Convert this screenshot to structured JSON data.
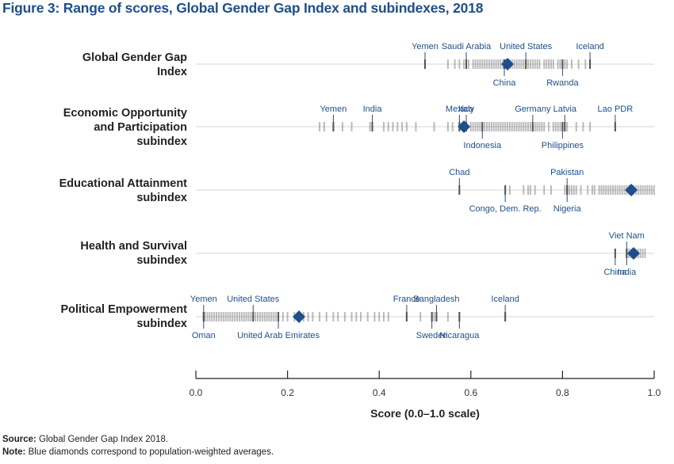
{
  "chart_data": {
    "type": "strip",
    "title": "Figure 3: Range of scores, Global Gender Gap Index and subindexes, 2018",
    "xlabel": "Score (0.0–1.0 scale)",
    "xlim": [
      0.0,
      1.0
    ],
    "xticks": [
      0.0,
      0.2,
      0.4,
      0.6,
      0.8,
      1.0
    ],
    "xtick_labels": [
      "0.0",
      "0.2",
      "0.4",
      "0.6",
      "0.8",
      "1.0"
    ],
    "grid": false,
    "legend": "none",
    "accent_color": "#1f4e8c",
    "rows": [
      {
        "label": "Global Gender Gap\nIndex",
        "weighted_average": 0.68,
        "annotations_above": [
          {
            "country": "Yemen",
            "value": 0.5
          },
          {
            "country": "Saudi Arabia",
            "value": 0.59
          },
          {
            "country": "United States",
            "value": 0.72
          },
          {
            "country": "Iceland",
            "value": 0.86
          }
        ],
        "annotations_below": [
          {
            "country": "China",
            "value": 0.673
          },
          {
            "country": "Rwanda",
            "value": 0.8
          }
        ],
        "scores": [
          0.5,
          0.55,
          0.565,
          0.575,
          0.585,
          0.59,
          0.595,
          0.605,
          0.61,
          0.615,
          0.62,
          0.625,
          0.63,
          0.635,
          0.64,
          0.645,
          0.65,
          0.655,
          0.66,
          0.665,
          0.67,
          0.673,
          0.675,
          0.68,
          0.685,
          0.69,
          0.695,
          0.7,
          0.705,
          0.71,
          0.715,
          0.72,
          0.725,
          0.73,
          0.735,
          0.74,
          0.745,
          0.75,
          0.76,
          0.765,
          0.77,
          0.775,
          0.78,
          0.79,
          0.795,
          0.8,
          0.805,
          0.81,
          0.82,
          0.835,
          0.85,
          0.86
        ]
      },
      {
        "label": "Economic Opportunity\nand Participation\nsubindex",
        "weighted_average": 0.585,
        "annotations_above": [
          {
            "country": "Yemen",
            "value": 0.3
          },
          {
            "country": "India",
            "value": 0.385
          },
          {
            "country": "Mexico",
            "value": 0.575
          },
          {
            "country": "Italy",
            "value": 0.59
          },
          {
            "country": "Germany",
            "value": 0.735
          },
          {
            "country": "Latvia",
            "value": 0.805
          },
          {
            "country": "Lao PDR",
            "value": 0.915
          }
        ],
        "annotations_below": [
          {
            "country": "Indonesia",
            "value": 0.625
          },
          {
            "country": "Philippines",
            "value": 0.8
          }
        ],
        "scores": [
          0.27,
          0.28,
          0.3,
          0.32,
          0.34,
          0.38,
          0.385,
          0.41,
          0.42,
          0.43,
          0.44,
          0.45,
          0.46,
          0.48,
          0.52,
          0.55,
          0.56,
          0.575,
          0.59,
          0.6,
          0.605,
          0.61,
          0.615,
          0.62,
          0.625,
          0.63,
          0.635,
          0.64,
          0.645,
          0.65,
          0.655,
          0.66,
          0.665,
          0.67,
          0.675,
          0.68,
          0.685,
          0.69,
          0.695,
          0.7,
          0.705,
          0.71,
          0.715,
          0.72,
          0.725,
          0.73,
          0.735,
          0.74,
          0.745,
          0.75,
          0.755,
          0.76,
          0.77,
          0.78,
          0.785,
          0.79,
          0.795,
          0.8,
          0.805,
          0.81,
          0.83,
          0.845,
          0.86,
          0.915
        ]
      },
      {
        "label": "Educational Attainment\nsubindex",
        "weighted_average": 0.95,
        "annotations_above": [
          {
            "country": "Chad",
            "value": 0.575
          },
          {
            "country": "Pakistan",
            "value": 0.81
          }
        ],
        "annotations_below": [
          {
            "country": "Congo, Dem. Rep.",
            "value": 0.675
          },
          {
            "country": "Nigeria",
            "value": 0.81
          }
        ],
        "scores": [
          0.575,
          0.675,
          0.685,
          0.715,
          0.725,
          0.73,
          0.74,
          0.76,
          0.775,
          0.805,
          0.81,
          0.815,
          0.82,
          0.825,
          0.83,
          0.84,
          0.855,
          0.865,
          0.87,
          0.88,
          0.885,
          0.89,
          0.895,
          0.9,
          0.905,
          0.91,
          0.915,
          0.92,
          0.925,
          0.93,
          0.935,
          0.94,
          0.945,
          0.95,
          0.955,
          0.96,
          0.965,
          0.97,
          0.975,
          0.98,
          0.985,
          0.99,
          0.995,
          1.0
        ]
      },
      {
        "label": "Health and Survival\nsubindex",
        "weighted_average": 0.955,
        "annotations_above": [
          {
            "country": "Viet Nam",
            "value": 0.94
          }
        ],
        "annotations_below": [
          {
            "country": "China",
            "value": 0.915
          },
          {
            "country": "India",
            "value": 0.94
          }
        ],
        "scores": [
          0.915,
          0.94,
          0.945,
          0.95,
          0.955,
          0.96,
          0.965,
          0.97,
          0.975,
          0.98
        ]
      },
      {
        "label": "Political Empowerment\nsubindex",
        "weighted_average": 0.225,
        "annotations_above": [
          {
            "country": "Yemen",
            "value": 0.017
          },
          {
            "country": "United States",
            "value": 0.125
          },
          {
            "country": "France",
            "value": 0.46
          },
          {
            "country": "Bangladesh",
            "value": 0.525
          },
          {
            "country": "Iceland",
            "value": 0.675
          }
        ],
        "annotations_below": [
          {
            "country": "Oman",
            "value": 0.017
          },
          {
            "country": "United Arab Emirates",
            "value": 0.18
          },
          {
            "country": "Sweden",
            "value": 0.515
          },
          {
            "country": "Nicaragua",
            "value": 0.575
          }
        ],
        "scores": [
          0.017,
          0.02,
          0.025,
          0.03,
          0.035,
          0.04,
          0.045,
          0.05,
          0.055,
          0.06,
          0.065,
          0.07,
          0.075,
          0.08,
          0.085,
          0.09,
          0.095,
          0.1,
          0.105,
          0.11,
          0.115,
          0.12,
          0.125,
          0.13,
          0.135,
          0.14,
          0.145,
          0.15,
          0.155,
          0.16,
          0.165,
          0.17,
          0.175,
          0.18,
          0.19,
          0.2,
          0.215,
          0.235,
          0.245,
          0.255,
          0.27,
          0.285,
          0.3,
          0.31,
          0.325,
          0.34,
          0.35,
          0.36,
          0.375,
          0.39,
          0.4,
          0.41,
          0.42,
          0.46,
          0.49,
          0.515,
          0.52,
          0.525,
          0.55,
          0.575,
          0.675
        ]
      }
    ]
  },
  "footnotes": {
    "source_label": "Source:",
    "source_text": " Global Gender Gap Index 2018.",
    "note_label": "Note:",
    "note_text": " Blue diamonds correspond to population-weighted averages."
  }
}
